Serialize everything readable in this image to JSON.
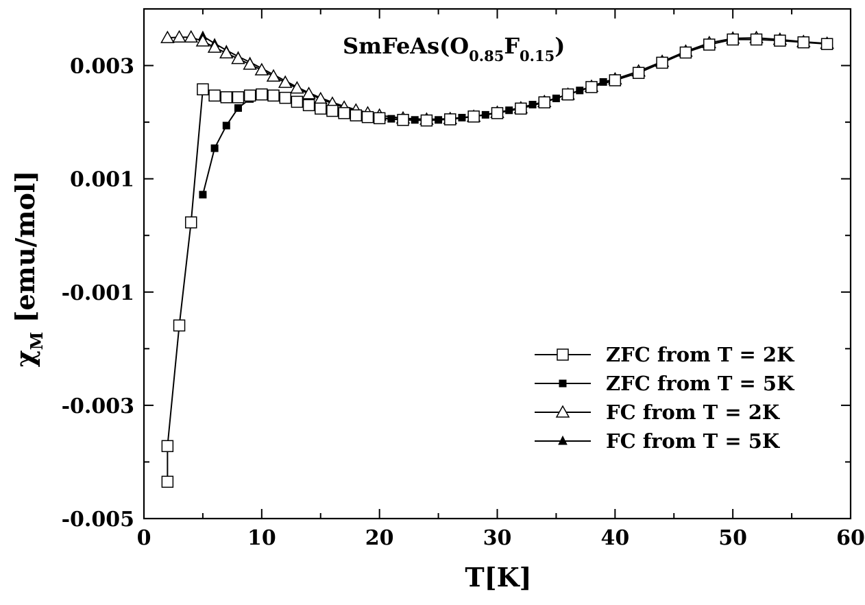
{
  "chart_data": {
    "type": "line",
    "title": {
      "main": "SmFeAs(O",
      "sub1": "0.85",
      "mid": "F",
      "sub2": "0.15",
      "end": ")"
    },
    "xlabel": "T[K]",
    "ylabel": {
      "symbol": "χ",
      "subscript": "M",
      "text": " [emu/mol]"
    },
    "xlim": [
      0,
      60
    ],
    "ylim": [
      -0.005,
      0.004
    ],
    "x_ticks": [
      {
        "value": 0,
        "label": "0"
      },
      {
        "value": 10,
        "label": "10"
      },
      {
        "value": 20,
        "label": "20"
      },
      {
        "value": 30,
        "label": "30"
      },
      {
        "value": 40,
        "label": "40"
      },
      {
        "value": 50,
        "label": "50"
      },
      {
        "value": 60,
        "label": "60"
      }
    ],
    "y_ticks": [
      {
        "value": -0.005,
        "label": "-0.005"
      },
      {
        "value": -0.003,
        "label": "-0.003"
      },
      {
        "value": -0.001,
        "label": "-0.001"
      },
      {
        "value": 0.001,
        "label": "0.001"
      },
      {
        "value": 0.003,
        "label": "0.003"
      }
    ],
    "x_minor_step": 5,
    "y_minor_step": 0.001,
    "grid": false,
    "legend_position": "bottom-right",
    "series": [
      {
        "name": "ZFC from T = 2K",
        "marker": "square-open",
        "x": [
          2,
          2,
          3,
          4,
          5,
          6,
          7,
          8,
          9,
          10,
          11,
          12,
          13,
          14,
          15,
          16,
          17,
          18,
          19,
          20,
          22,
          24,
          26,
          28,
          30,
          32,
          34,
          36,
          38,
          40,
          42,
          44,
          46,
          48,
          50,
          52,
          54,
          56,
          58
        ],
        "y": [
          -0.00435,
          -0.00372,
          -0.00159,
          0.00023,
          0.00258,
          0.00247,
          0.00244,
          0.00244,
          0.00247,
          0.00249,
          0.00247,
          0.00243,
          0.00236,
          0.0023,
          0.00224,
          0.0022,
          0.00216,
          0.00212,
          0.00209,
          0.00207,
          0.00204,
          0.00203,
          0.00205,
          0.0021,
          0.00216,
          0.00224,
          0.00235,
          0.00249,
          0.00262,
          0.00274,
          0.00287,
          0.00305,
          0.00323,
          0.00337,
          0.00346,
          0.00346,
          0.00344,
          0.00341,
          0.00338
        ]
      },
      {
        "name": "ZFC from T = 5K",
        "marker": "square-filled",
        "x": [
          5,
          6,
          7,
          8,
          9,
          10,
          11,
          12,
          13,
          14,
          15,
          16,
          17,
          18,
          19,
          20,
          21,
          22,
          23,
          24,
          25,
          26,
          27,
          28,
          29,
          30,
          31,
          32,
          33,
          34,
          35,
          36,
          37,
          38,
          39,
          40
        ],
        "y": [
          0.00072,
          0.00154,
          0.00194,
          0.00225,
          0.00241,
          0.00246,
          0.00244,
          0.00241,
          0.00234,
          0.00229,
          0.00224,
          0.00221,
          0.00217,
          0.00214,
          0.00211,
          0.00208,
          0.00206,
          0.00205,
          0.00204,
          0.00204,
          0.00204,
          0.00206,
          0.00208,
          0.0021,
          0.00213,
          0.00217,
          0.00221,
          0.00226,
          0.00231,
          0.00236,
          0.00242,
          0.00249,
          0.00256,
          0.00263,
          0.00271,
          0.00276
        ]
      },
      {
        "name": "FC from T = 2K",
        "marker": "triangle-open",
        "x": [
          2,
          3,
          4,
          5,
          6,
          7,
          8,
          9,
          10,
          11,
          12,
          13,
          14,
          15,
          16,
          17,
          18,
          19,
          20,
          22,
          24,
          26,
          28,
          30,
          32,
          34,
          36,
          38,
          40,
          42,
          44,
          46,
          48,
          50,
          52,
          54,
          56,
          58
        ],
        "y": [
          0.00349,
          0.0035,
          0.0035,
          0.00343,
          0.00332,
          0.00322,
          0.00312,
          0.00302,
          0.00292,
          0.00281,
          0.0027,
          0.0026,
          0.0025,
          0.00241,
          0.00233,
          0.00226,
          0.00221,
          0.00216,
          0.00212,
          0.00207,
          0.00205,
          0.00206,
          0.0021,
          0.00217,
          0.00225,
          0.00236,
          0.00249,
          0.00263,
          0.00276,
          0.0029,
          0.00307,
          0.00325,
          0.0034,
          0.00348,
          0.00349,
          0.00346,
          0.00342,
          0.00339
        ]
      },
      {
        "name": "FC from T = 5K",
        "marker": "triangle-filled",
        "x": [
          5,
          6,
          7,
          8,
          9,
          10,
          11,
          12,
          13,
          14,
          15,
          16,
          17,
          18,
          19,
          20
        ],
        "y": [
          0.00352,
          0.00339,
          0.00327,
          0.00316,
          0.00306,
          0.00295,
          0.00284,
          0.00273,
          0.00262,
          0.00252,
          0.00243,
          0.00235,
          0.00228,
          0.00222,
          0.00217,
          0.00213
        ]
      }
    ]
  }
}
